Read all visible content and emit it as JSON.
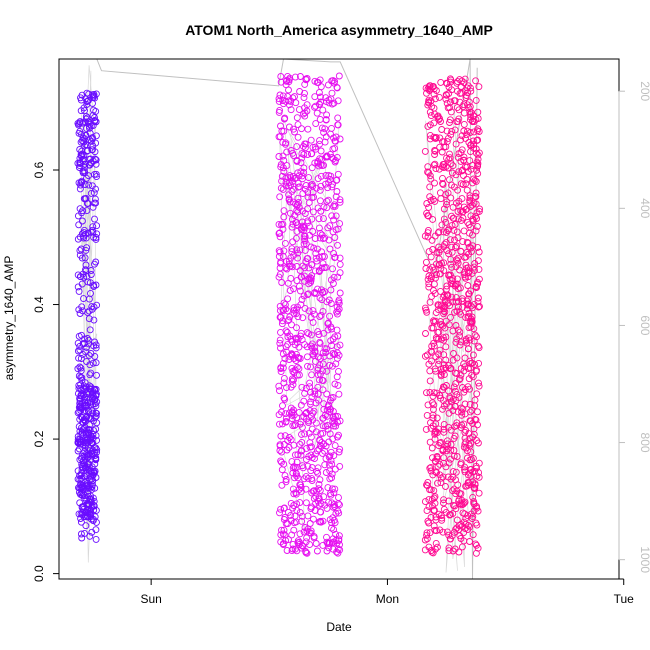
{
  "chart_data": {
    "type": "scatter",
    "title": "ATOM1 North_America asymmetry_1640_AMP",
    "xlabel": "Date",
    "ylabel": "asymmetry_1640_AMP",
    "x_ticks": [
      "Sun",
      "Mon",
      "Tue"
    ],
    "x_tick_values": [
      0,
      1,
      2
    ],
    "x_range": [
      -0.39,
      1.98
    ],
    "ylim": [
      -0.008,
      0.765
    ],
    "y_ticks": [
      0.0,
      0.2,
      0.4,
      0.6
    ],
    "y_right_ticks": [
      200,
      400,
      600,
      800,
      1000
    ],
    "y_right_range": [
      1033,
      145
    ],
    "y_right_reversed": true,
    "grid": false,
    "line_color": "#c0c0c0",
    "clusters": [
      {
        "x_start": -0.31,
        "x_end": -0.23,
        "color": "#6a0dff",
        "y_min": 0.035,
        "y_max": 0.72,
        "n": 560
      },
      {
        "x_start": 0.54,
        "x_end": 0.8,
        "color": "#e60ff0",
        "y_min": 0.02,
        "y_max": 0.75,
        "n": 950
      },
      {
        "x_start": 1.16,
        "x_end": 1.39,
        "color": "#ff0a92",
        "y_min": 0.02,
        "y_max": 0.75,
        "n": 900
      }
    ],
    "index_line": [
      {
        "x": -0.31,
        "i": 145
      },
      {
        "x": -0.23,
        "i": 145
      },
      {
        "x": -0.21,
        "i": 165
      },
      {
        "x": 0.54,
        "i": 191
      },
      {
        "x": 0.56,
        "i": 145
      },
      {
        "x": 0.76,
        "i": 150
      },
      {
        "x": 0.8,
        "i": 150
      },
      {
        "x": 1.2,
        "i": 512
      },
      {
        "x": 1.35,
        "i": 145
      },
      {
        "x": 1.36,
        "i": 1033
      },
      {
        "x": 1.38,
        "i": 160
      }
    ]
  }
}
